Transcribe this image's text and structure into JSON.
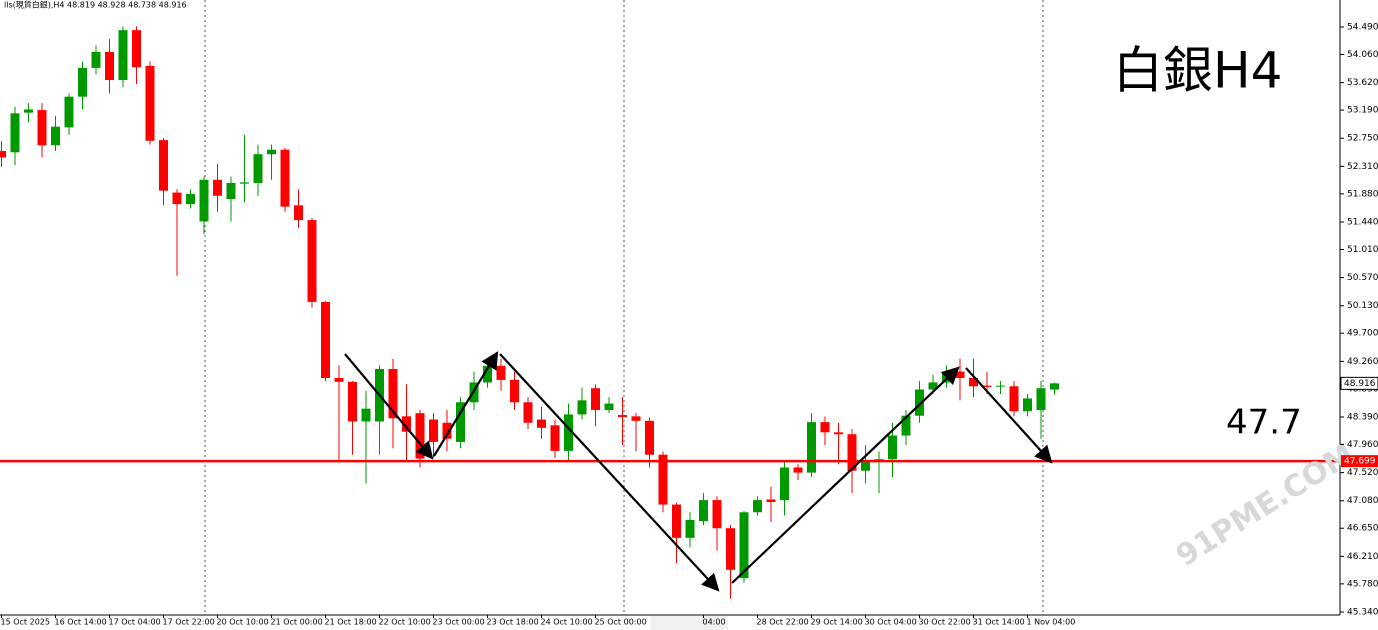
{
  "chart_data": {
    "type": "candlestick",
    "header": "lls(現貨白銀),H4 48.819 48.928 48.738 48.916",
    "title": "白銀H4",
    "annotation": "47.7",
    "watermark": "91PME.COM",
    "categories": [
      "15 Oct 2025",
      null,
      null,
      null,
      "16 Oct 14:00",
      null,
      null,
      null,
      "17 Oct 04:00",
      null,
      null,
      null,
      "17 Oct 22:00",
      null,
      null,
      null,
      "20 Oct 10:00",
      null,
      null,
      null,
      "21 Oct 00:00",
      null,
      null,
      null,
      "21 Oct 18:00",
      null,
      null,
      null,
      "22 Oct 10:00",
      null,
      null,
      null,
      "23 Oct 00:00",
      null,
      null,
      null,
      "23 Oct 18:00",
      null,
      null,
      null,
      "24 Oct 10:00",
      null,
      null,
      null,
      "25 Oct 00:00",
      null,
      null,
      null,
      null,
      null,
      null,
      null,
      "04:00",
      null,
      null,
      null,
      "28 Oct 22:00",
      null,
      null,
      null,
      "29 Oct 14:00",
      null,
      null,
      null,
      "30 Oct 04:00",
      null,
      null,
      null,
      "30 Oct 22:00",
      null,
      null,
      null,
      "31 Oct 14:00",
      null,
      null,
      null,
      "1 Nov 04:00",
      null,
      null
    ],
    "open": [
      52.55,
      52.53,
      53.15,
      53.19,
      52.64,
      52.92,
      53.4,
      53.85,
      54.1,
      53.66,
      54.44,
      53.88,
      52.72,
      51.9,
      51.72,
      51.45,
      52.1,
      51.8,
      52.04,
      52.05,
      52.5,
      52.57,
      51.7,
      51.47,
      50.19,
      49.0,
      48.94,
      48.32,
      48.32,
      49.14,
      48.4,
      48.45,
      48.35,
      48.3,
      48.0,
      48.62,
      48.93,
      49.19,
      48.97,
      48.62,
      48.35,
      48.26,
      47.86,
      48.43,
      48.84,
      48.5,
      48.42,
      48.4,
      48.33,
      47.8,
      47.02,
      46.5,
      46.76,
      47.09,
      46.65,
      45.87,
      46.9,
      47.1,
      47.09,
      47.6,
      47.52,
      48.31,
      48.15,
      48.12,
      47.55,
      47.7,
      47.73,
      48.1,
      48.41,
      48.82,
      48.93,
      49.1,
      49.0,
      48.88,
      48.87,
      48.87,
      48.48,
      48.5,
      48.819
    ],
    "high": [
      52.7,
      53.24,
      53.3,
      53.3,
      53.1,
      53.45,
      53.95,
      54.2,
      54.3,
      54.5,
      54.5,
      53.95,
      52.75,
      51.95,
      51.95,
      52.15,
      52.35,
      52.15,
      52.8,
      52.65,
      52.65,
      52.6,
      51.95,
      51.5,
      50.2,
      49.2,
      48.95,
      48.8,
      49.2,
      49.3,
      48.9,
      48.5,
      48.45,
      48.5,
      48.7,
      49.1,
      49.3,
      49.3,
      49.1,
      48.7,
      48.55,
      48.35,
      48.6,
      48.85,
      48.9,
      48.7,
      48.7,
      48.45,
      48.38,
      47.85,
      47.05,
      46.9,
      47.2,
      47.15,
      46.7,
      46.92,
      47.15,
      47.3,
      47.7,
      47.65,
      48.45,
      48.4,
      48.3,
      48.2,
      47.95,
      47.85,
      48.3,
      48.5,
      48.95,
      49.05,
      49.2,
      49.3,
      49.3,
      49.1,
      48.95,
      48.95,
      48.75,
      48.95,
      48.928
    ],
    "low": [
      52.3,
      52.33,
      53.0,
      52.45,
      52.55,
      52.8,
      53.2,
      53.75,
      53.45,
      53.55,
      53.6,
      52.65,
      51.7,
      50.6,
      51.65,
      51.25,
      51.6,
      51.45,
      51.75,
      51.85,
      52.1,
      51.6,
      51.35,
      50.1,
      48.95,
      47.7,
      47.8,
      47.35,
      47.8,
      47.9,
      47.7,
      47.6,
      47.75,
      47.85,
      47.9,
      48.5,
      48.85,
      48.8,
      48.5,
      48.2,
      48.05,
      47.75,
      47.7,
      48.35,
      48.25,
      48.45,
      47.95,
      47.85,
      47.6,
      46.9,
      46.1,
      46.35,
      46.7,
      46.3,
      45.55,
      45.8,
      46.85,
      46.75,
      46.85,
      47.4,
      47.45,
      47.95,
      47.65,
      47.2,
      47.35,
      47.2,
      47.45,
      47.95,
      48.3,
      48.75,
      48.85,
      48.65,
      48.7,
      48.75,
      48.75,
      48.4,
      48.4,
      48.05,
      48.738
    ],
    "close": [
      52.45,
      53.14,
      53.2,
      52.64,
      52.93,
      53.4,
      53.85,
      54.1,
      53.66,
      54.44,
      53.86,
      52.71,
      51.93,
      51.72,
      51.88,
      52.1,
      51.85,
      52.05,
      52.06,
      52.5,
      52.57,
      51.68,
      51.47,
      50.19,
      49.0,
      48.94,
      48.32,
      48.52,
      49.14,
      48.37,
      48.16,
      47.74,
      48.0,
      48.05,
      48.62,
      48.93,
      49.19,
      48.97,
      48.62,
      48.3,
      48.22,
      47.86,
      48.43,
      48.65,
      48.5,
      48.6,
      48.39,
      48.33,
      47.8,
      47.02,
      46.5,
      46.78,
      47.09,
      46.65,
      46.0,
      46.9,
      47.09,
      47.06,
      47.6,
      47.52,
      48.31,
      48.15,
      48.12,
      47.55,
      47.7,
      47.73,
      48.1,
      48.41,
      48.82,
      48.93,
      49.1,
      49.0,
      48.87,
      48.86,
      48.88,
      48.48,
      48.68,
      48.84,
      48.916
    ],
    "up_color": "#009900",
    "down_color": "#ff0000",
    "ylim": [
      45.293,
      54.912
    ],
    "yticks": [
      {
        "value": 54.49,
        "label": "54.490"
      },
      {
        "value": 54.06,
        "label": "54.060"
      },
      {
        "value": 53.62,
        "label": "53.620"
      },
      {
        "value": 53.19,
        "label": "53.190"
      },
      {
        "value": 52.75,
        "label": "52.750"
      },
      {
        "value": 52.31,
        "label": "52.310"
      },
      {
        "value": 51.88,
        "label": "51.880"
      },
      {
        "value": 51.44,
        "label": "51.440"
      },
      {
        "value": 51.01,
        "label": "51.010"
      },
      {
        "value": 50.57,
        "label": "50.570"
      },
      {
        "value": 50.13,
        "label": "50.130"
      },
      {
        "value": 49.7,
        "label": "49.700"
      },
      {
        "value": 49.26,
        "label": "49.260"
      },
      {
        "value": 48.83,
        "label": "48.830"
      },
      {
        "value": 48.39,
        "label": "48.390"
      },
      {
        "value": 47.96,
        "label": "47.960"
      },
      {
        "value": 47.52,
        "label": "47.520"
      },
      {
        "value": 47.08,
        "label": "47.080"
      },
      {
        "value": 46.65,
        "label": "46.650"
      },
      {
        "value": 46.21,
        "label": "46.210"
      },
      {
        "value": 45.78,
        "label": "45.780"
      },
      {
        "value": 45.34,
        "label": "45.340"
      }
    ],
    "hline": {
      "value": 47.699,
      "label": "47.699",
      "color": "#ff0000"
    },
    "last_price": {
      "value": 48.916,
      "label": "48.916"
    }
  }
}
